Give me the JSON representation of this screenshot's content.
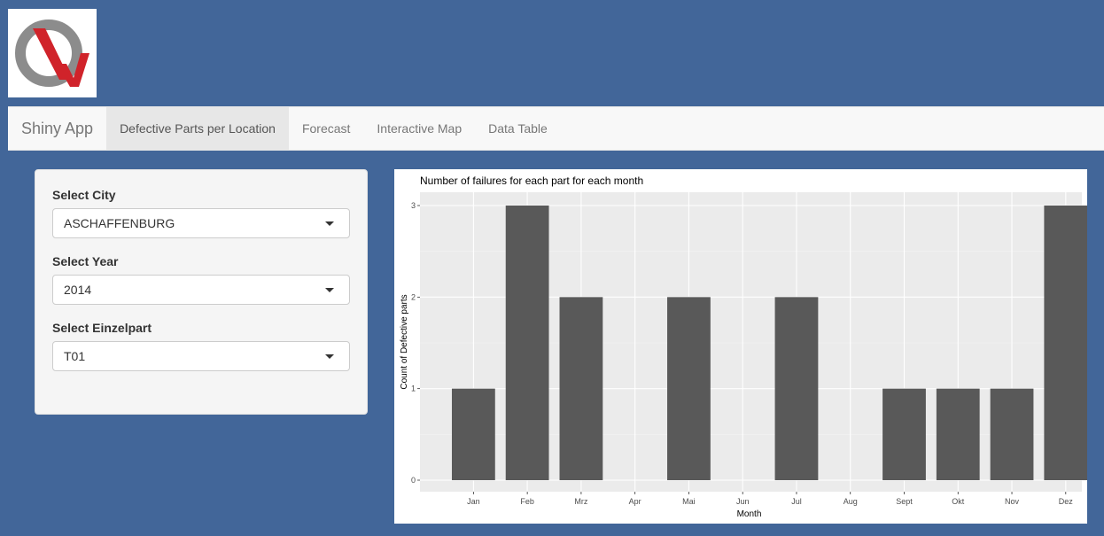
{
  "navbar": {
    "brand": "Shiny App",
    "tabs": [
      {
        "label": "Defective Parts per Location",
        "active": true
      },
      {
        "label": "Forecast",
        "active": false
      },
      {
        "label": "Interactive Map",
        "active": false
      },
      {
        "label": "Data Table",
        "active": false
      }
    ]
  },
  "sidebar": {
    "city": {
      "label": "Select City",
      "value": "ASCHAFFENBURG"
    },
    "year": {
      "label": "Select Year",
      "value": "2014"
    },
    "part": {
      "label": "Select Einzelpart",
      "value": "T01"
    }
  },
  "colors": {
    "background": "#426699",
    "bar": "#595959",
    "panel": "#ebebeb",
    "logo_red": "#d0232a",
    "logo_gray": "#8c8c8c"
  },
  "icons": {
    "logo": "qw-logo",
    "dropdown": "caret-down-icon"
  },
  "chart_data": {
    "type": "bar",
    "title": "Number of failures for each part for each month",
    "xlabel": "Month",
    "ylabel": "Count of Defective parts",
    "categories": [
      "Jan",
      "Feb",
      "Mrz",
      "Apr",
      "Mai",
      "Jun",
      "Jul",
      "Aug",
      "Sept",
      "Okt",
      "Nov",
      "Dez"
    ],
    "values": [
      1,
      3,
      2,
      0,
      2,
      0,
      2,
      0,
      1,
      1,
      1,
      3
    ],
    "yticks": [
      0,
      1,
      2,
      3
    ],
    "ylim": [
      0,
      3
    ],
    "grid": true,
    "legend": "none"
  }
}
